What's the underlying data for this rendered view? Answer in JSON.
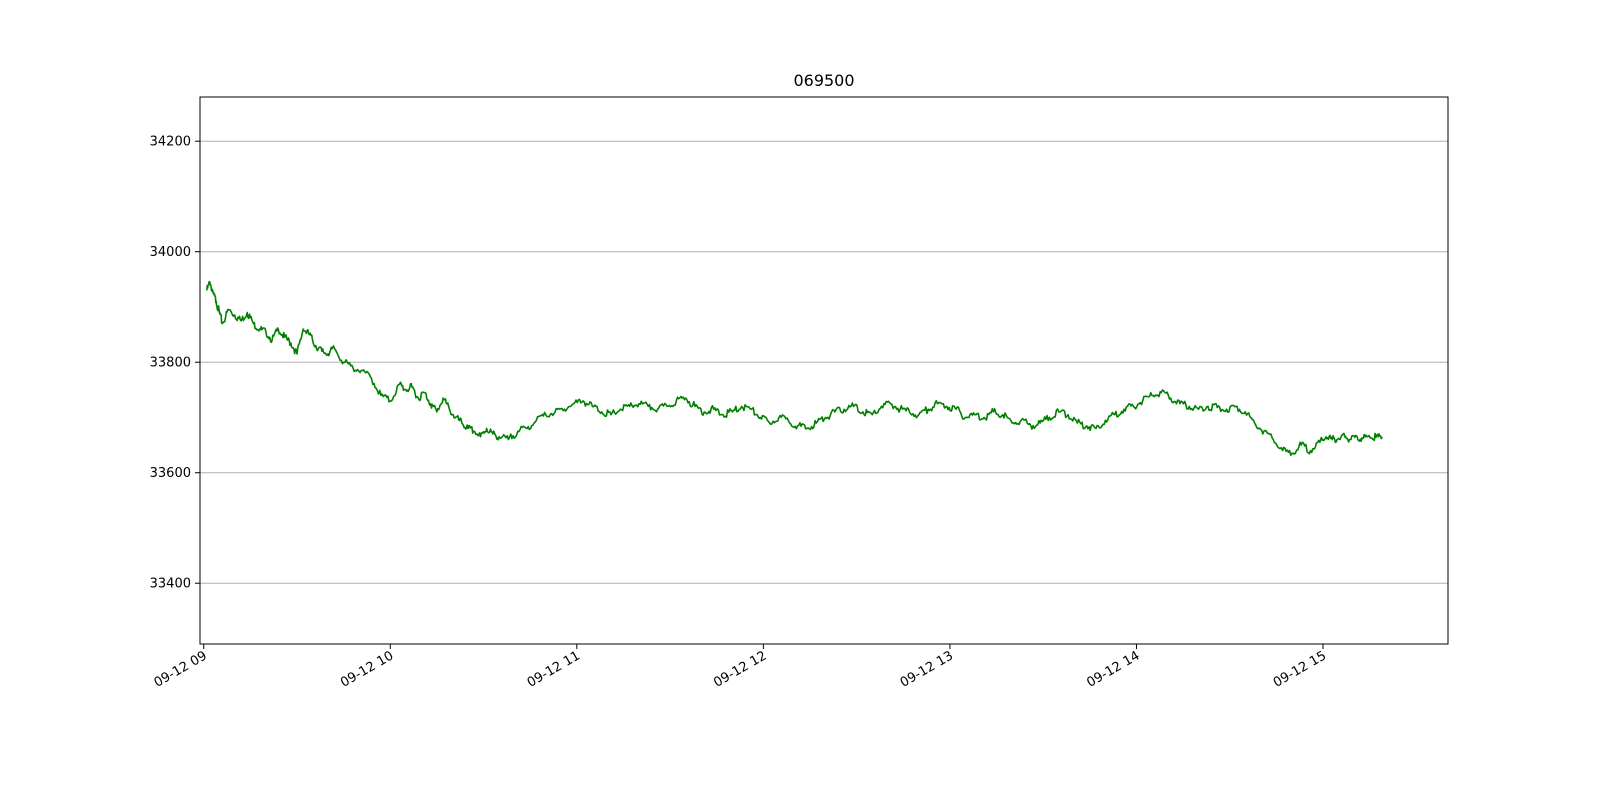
{
  "chart_data": {
    "type": "line",
    "title": "069500",
    "xlabel": "",
    "ylabel": "",
    "grid": "y-major",
    "line_color": "#008000",
    "x_ticks": [
      "09-12 09",
      "09-12 10",
      "09-12 11",
      "09-12 12",
      "09-12 13",
      "09-12 14",
      "09-12 15"
    ],
    "x_tick_hours": [
      9,
      10,
      11,
      12,
      13,
      14,
      15
    ],
    "xlim": [
      8.98,
      15.67
    ],
    "y_ticks": [
      33400,
      33600,
      33800,
      34000,
      34200
    ],
    "ylim": [
      33290,
      34280
    ],
    "series": [
      {
        "x": [
          "09:01",
          "09:02",
          "09:03",
          "09:04",
          "09:05",
          "09:06",
          "09:08",
          "09:10",
          "09:12",
          "09:14",
          "09:16",
          "09:18",
          "09:20",
          "09:22",
          "09:24",
          "09:26",
          "09:28",
          "09:30",
          "09:32",
          "09:34",
          "09:36",
          "09:38",
          "09:40",
          "09:42",
          "09:45",
          "09:48",
          "09:51",
          "09:54",
          "09:57",
          "10:00",
          "10:03",
          "10:05",
          "10:07",
          "10:09",
          "10:11",
          "10:13",
          "10:15",
          "10:17",
          "10:19",
          "10:21",
          "10:23",
          "10:25",
          "10:27",
          "10:29",
          "10:31",
          "10:33",
          "10:35",
          "10:38",
          "10:41",
          "10:44",
          "10:47",
          "10:50",
          "10:53",
          "10:56",
          "10:59",
          "11:02",
          "11:05",
          "11:08",
          "11:11",
          "11:14",
          "11:17",
          "11:20",
          "11:23",
          "11:26",
          "11:29",
          "11:32",
          "11:35",
          "11:38",
          "11:41",
          "11:44",
          "11:47",
          "11:50",
          "11:53",
          "11:56",
          "11:59",
          "12:02",
          "12:05",
          "12:08",
          "12:11",
          "12:14",
          "12:17",
          "12:20",
          "12:23",
          "12:26",
          "12:29",
          "12:32",
          "12:35",
          "12:38",
          "12:41",
          "12:44",
          "12:47",
          "12:50",
          "12:53",
          "12:56",
          "12:59",
          "13:02",
          "13:05",
          "13:08",
          "13:11",
          "13:14",
          "13:17",
          "13:20",
          "13:23",
          "13:26",
          "13:29",
          "13:32",
          "13:35",
          "13:38",
          "13:41",
          "13:44",
          "13:47",
          "13:50",
          "13:53",
          "13:56",
          "13:59",
          "14:02",
          "14:05",
          "14:08",
          "14:11",
          "14:14",
          "14:17",
          "14:20",
          "14:23",
          "14:26",
          "14:29",
          "14:32",
          "14:35",
          "14:38",
          "14:41",
          "14:44",
          "14:47",
          "14:50",
          "14:53",
          "14:56",
          "14:59",
          "15:01",
          "15:03",
          "15:05",
          "15:07",
          "15:09",
          "15:11",
          "15:13",
          "15:15",
          "15:17",
          "15:19"
        ],
        "values": [
          33930,
          33945,
          33925,
          33910,
          33890,
          33870,
          33895,
          33885,
          33875,
          33890,
          33870,
          33860,
          33855,
          33840,
          33860,
          33845,
          33835,
          33815,
          33860,
          33850,
          33830,
          33820,
          33815,
          33825,
          33800,
          33790,
          33785,
          33770,
          33740,
          33730,
          33760,
          33750,
          33755,
          33735,
          33745,
          33725,
          33710,
          33735,
          33715,
          33700,
          33690,
          33680,
          33675,
          33665,
          33680,
          33670,
          33665,
          33660,
          33675,
          33680,
          33695,
          33705,
          33710,
          33715,
          33725,
          33730,
          33720,
          33710,
          33705,
          33715,
          33720,
          33725,
          33720,
          33715,
          33720,
          33730,
          33735,
          33720,
          33710,
          33715,
          33705,
          33710,
          33720,
          33715,
          33700,
          33690,
          33700,
          33695,
          33685,
          33680,
          33690,
          33700,
          33710,
          33715,
          33720,
          33710,
          33705,
          33720,
          33725,
          33715,
          33710,
          33705,
          33715,
          33725,
          33720,
          33715,
          33700,
          33705,
          33700,
          33710,
          33705,
          33690,
          33695,
          33685,
          33690,
          33700,
          33710,
          33705,
          33690,
          33685,
          33680,
          33695,
          33705,
          33715,
          33720,
          33730,
          33740,
          33745,
          33735,
          33725,
          33720,
          33715,
          33720,
          33718,
          33715,
          33720,
          33710,
          33690,
          33675,
          33660,
          33640,
          33635,
          33650,
          33640,
          33655,
          33665,
          33660,
          33662,
          33665,
          33660,
          33665,
          33663,
          33665,
          33664,
          33665
        ]
      }
    ]
  }
}
